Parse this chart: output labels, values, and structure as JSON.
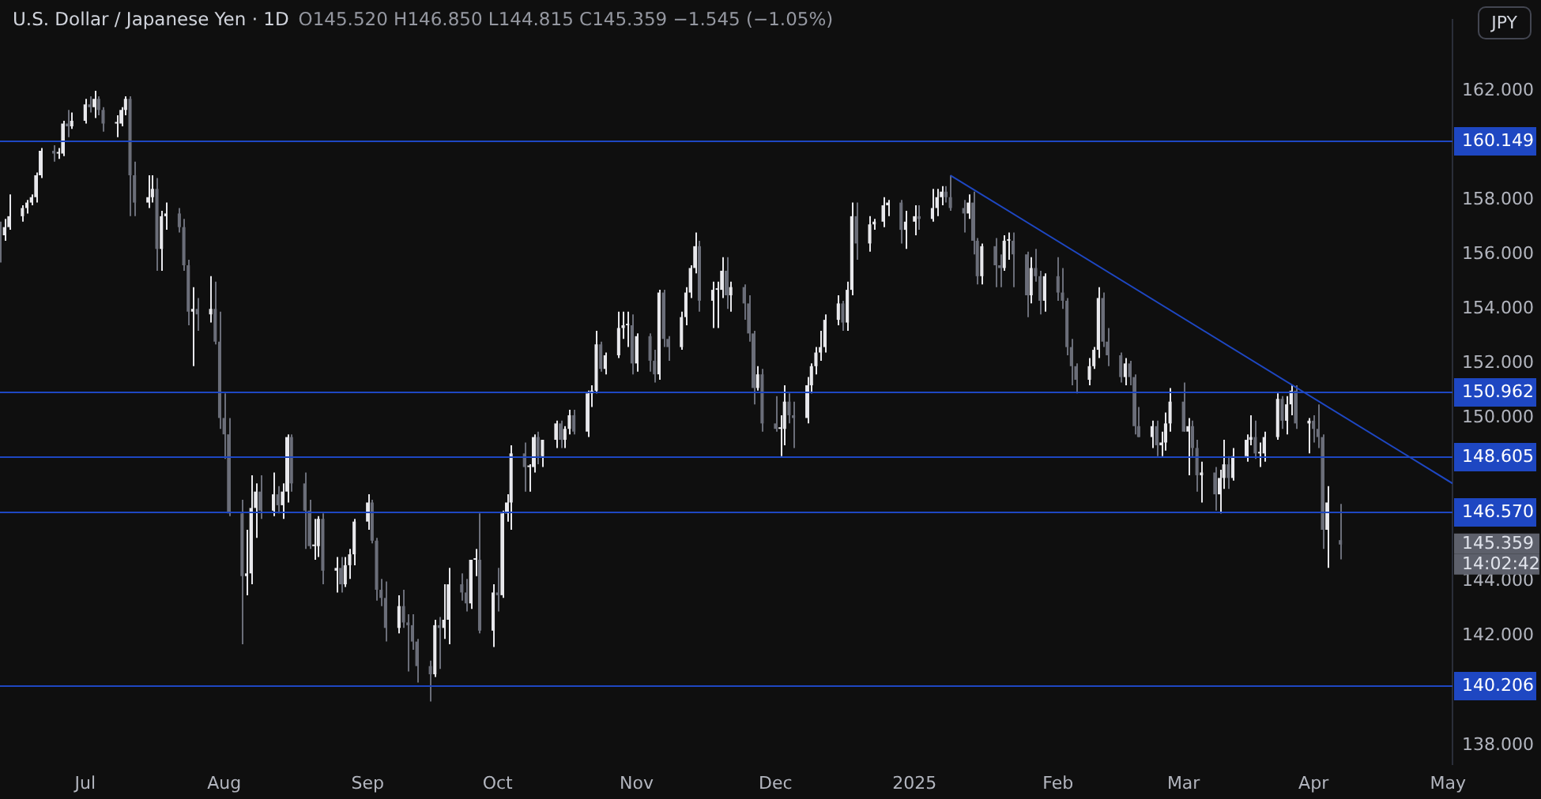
{
  "chart_data": {
    "type": "candlestick",
    "title": "U.S. Dollar / Japanese Yen · 1D",
    "subtitle": "O145.520 H146.850 L144.815 C145.359 −1.545 (−1.05%)",
    "ylabel": "JPY",
    "x": [
      "2024-06-12",
      "2024-06-13",
      "2024-06-14",
      "2024-06-17",
      "2024-06-18",
      "2024-06-19",
      "2024-06-20",
      "2024-06-21",
      "2024-06-24",
      "2024-06-25",
      "2024-06-26",
      "2024-06-27",
      "2024-06-28",
      "2024-07-01",
      "2024-07-02",
      "2024-07-03",
      "2024-07-04",
      "2024-07-05",
      "2024-07-08",
      "2024-07-09",
      "2024-07-10",
      "2024-07-11",
      "2024-07-12",
      "2024-07-15",
      "2024-07-16",
      "2024-07-17",
      "2024-07-18",
      "2024-07-19",
      "2024-07-22",
      "2024-07-23",
      "2024-07-24",
      "2024-07-25",
      "2024-07-26",
      "2024-07-29",
      "2024-07-30",
      "2024-07-31",
      "2024-08-01",
      "2024-08-02",
      "2024-08-05",
      "2024-08-06",
      "2024-08-07",
      "2024-08-08",
      "2024-08-09",
      "2024-08-12",
      "2024-08-13",
      "2024-08-14",
      "2024-08-15",
      "2024-08-16",
      "2024-08-19",
      "2024-08-20",
      "2024-08-21",
      "2024-08-22",
      "2024-08-23",
      "2024-08-26",
      "2024-08-27",
      "2024-08-28",
      "2024-08-29",
      "2024-08-30",
      "2024-09-02",
      "2024-09-03",
      "2024-09-04",
      "2024-09-05",
      "2024-09-06",
      "2024-09-09",
      "2024-09-10",
      "2024-09-11",
      "2024-09-12",
      "2024-09-13",
      "2024-09-16",
      "2024-09-17",
      "2024-09-18",
      "2024-09-19",
      "2024-09-20",
      "2024-09-23",
      "2024-09-24",
      "2024-09-25",
      "2024-09-26",
      "2024-09-27",
      "2024-09-30",
      "2024-10-01",
      "2024-10-02",
      "2024-10-03",
      "2024-10-04",
      "2024-10-07",
      "2024-10-08",
      "2024-10-09",
      "2024-10-10",
      "2024-10-11",
      "2024-10-14",
      "2024-10-15",
      "2024-10-16",
      "2024-10-17",
      "2024-10-18",
      "2024-10-21",
      "2024-10-22",
      "2024-10-23",
      "2024-10-24",
      "2024-10-25",
      "2024-10-28",
      "2024-10-29",
      "2024-10-30",
      "2024-10-31",
      "2024-11-01",
      "2024-11-04",
      "2024-11-05",
      "2024-11-06",
      "2024-11-07",
      "2024-11-08",
      "2024-11-11",
      "2024-11-12",
      "2024-11-13",
      "2024-11-14",
      "2024-11-15",
      "2024-11-18",
      "2024-11-19",
      "2024-11-20",
      "2024-11-21",
      "2024-11-22",
      "2024-11-25",
      "2024-11-26",
      "2024-11-27",
      "2024-11-28",
      "2024-11-29",
      "2024-12-02",
      "2024-12-03",
      "2024-12-04",
      "2024-12-05",
      "2024-12-06",
      "2024-12-09",
      "2024-12-10",
      "2024-12-11",
      "2024-12-12",
      "2024-12-13",
      "2024-12-16",
      "2024-12-17",
      "2024-12-18",
      "2024-12-19",
      "2024-12-20",
      "2024-12-23",
      "2024-12-24",
      "2024-12-26",
      "2024-12-27",
      "2024-12-30",
      "2024-12-31",
      "2025-01-02",
      "2025-01-03",
      "2025-01-06",
      "2025-01-07",
      "2025-01-08",
      "2025-01-09",
      "2025-01-10",
      "2025-01-13",
      "2025-01-14",
      "2025-01-15",
      "2025-01-16",
      "2025-01-17",
      "2025-01-20",
      "2025-01-21",
      "2025-01-22",
      "2025-01-23",
      "2025-01-24",
      "2025-01-27",
      "2025-01-28",
      "2025-01-29",
      "2025-01-30",
      "2025-01-31",
      "2025-02-03",
      "2025-02-04",
      "2025-02-05",
      "2025-02-06",
      "2025-02-07",
      "2025-02-10",
      "2025-02-11",
      "2025-02-12",
      "2025-02-13",
      "2025-02-14",
      "2025-02-17",
      "2025-02-18",
      "2025-02-19",
      "2025-02-20",
      "2025-02-21",
      "2025-02-24",
      "2025-02-25",
      "2025-02-26",
      "2025-02-27",
      "2025-02-28",
      "2025-03-03",
      "2025-03-04",
      "2025-03-05",
      "2025-03-06",
      "2025-03-07",
      "2025-03-10",
      "2025-03-11",
      "2025-03-12",
      "2025-03-13",
      "2025-03-14",
      "2025-03-17",
      "2025-03-18",
      "2025-03-19",
      "2025-03-20",
      "2025-03-21",
      "2025-03-24",
      "2025-03-25",
      "2025-03-26",
      "2025-03-27",
      "2025-03-28",
      "2025-03-31",
      "2025-04-01",
      "2025-04-02",
      "2025-04-03",
      "2025-04-04",
      "2025-04-07"
    ],
    "ohlc": [
      [
        157.0,
        157.2,
        155.7,
        156.7
      ],
      [
        156.7,
        157.3,
        156.5,
        157.0
      ],
      [
        157.0,
        158.2,
        156.9,
        157.4
      ],
      [
        157.4,
        157.8,
        157.2,
        157.7
      ],
      [
        157.7,
        158.0,
        157.5,
        157.9
      ],
      [
        157.9,
        158.2,
        157.8,
        158.1
      ],
      [
        158.1,
        159.0,
        157.9,
        158.9
      ],
      [
        158.9,
        159.9,
        158.8,
        159.8
      ],
      [
        159.8,
        160.0,
        159.4,
        159.7
      ],
      [
        159.7,
        159.9,
        159.5,
        159.7
      ],
      [
        159.7,
        160.9,
        159.6,
        160.8
      ],
      [
        160.8,
        161.3,
        160.3,
        160.7
      ],
      [
        160.7,
        161.2,
        160.6,
        160.9
      ],
      [
        160.9,
        161.7,
        160.8,
        161.5
      ],
      [
        161.5,
        161.8,
        161.2,
        161.4
      ],
      [
        161.4,
        162.0,
        161.0,
        161.7
      ],
      [
        161.7,
        161.8,
        161.1,
        161.3
      ],
      [
        161.3,
        161.4,
        160.5,
        160.8
      ],
      [
        160.8,
        161.1,
        160.3,
        160.8
      ],
      [
        160.8,
        161.4,
        160.7,
        161.3
      ],
      [
        161.3,
        161.8,
        161.1,
        161.7
      ],
      [
        161.7,
        161.8,
        157.4,
        158.9
      ],
      [
        158.9,
        159.4,
        157.4,
        157.9
      ],
      [
        157.9,
        158.9,
        157.7,
        158.1
      ],
      [
        158.1,
        158.9,
        157.9,
        158.4
      ],
      [
        158.4,
        158.8,
        155.4,
        156.2
      ],
      [
        156.2,
        157.6,
        155.4,
        157.4
      ],
      [
        157.4,
        157.9,
        156.9,
        157.5
      ],
      [
        157.5,
        157.7,
        156.8,
        157.0
      ],
      [
        157.0,
        157.3,
        155.4,
        155.6
      ],
      [
        155.6,
        155.8,
        153.4,
        153.9
      ],
      [
        153.9,
        154.8,
        151.9,
        154.0
      ],
      [
        154.0,
        154.4,
        153.2,
        153.8
      ],
      [
        153.8,
        155.2,
        153.5,
        154.0
      ],
      [
        154.0,
        155.0,
        152.7,
        152.8
      ],
      [
        152.8,
        153.9,
        149.6,
        150.0
      ],
      [
        150.0,
        150.9,
        148.5,
        149.4
      ],
      [
        149.4,
        150.0,
        146.4,
        146.5
      ],
      [
        146.5,
        147.0,
        141.7,
        144.2
      ],
      [
        144.2,
        145.9,
        143.5,
        144.3
      ],
      [
        144.3,
        147.9,
        143.9,
        146.7
      ],
      [
        146.7,
        147.6,
        145.6,
        147.3
      ],
      [
        147.3,
        147.9,
        146.3,
        146.6
      ],
      [
        146.6,
        148.0,
        146.4,
        147.2
      ],
      [
        147.2,
        147.5,
        146.5,
        146.8
      ],
      [
        146.8,
        147.6,
        146.3,
        147.3
      ],
      [
        147.3,
        149.4,
        146.9,
        149.3
      ],
      [
        149.3,
        149.4,
        147.3,
        147.6
      ],
      [
        147.6,
        148.0,
        145.2,
        146.6
      ],
      [
        146.6,
        147.0,
        145.2,
        145.3
      ],
      [
        145.3,
        146.3,
        144.8,
        145.3
      ],
      [
        145.3,
        146.4,
        144.9,
        146.3
      ],
      [
        146.3,
        146.5,
        143.9,
        144.4
      ],
      [
        144.4,
        144.9,
        143.6,
        144.5
      ],
      [
        144.5,
        144.9,
        143.6,
        143.9
      ],
      [
        143.9,
        144.9,
        143.8,
        144.6
      ],
      [
        144.6,
        145.2,
        144.1,
        145.0
      ],
      [
        145.0,
        146.3,
        144.6,
        146.2
      ],
      [
        146.2,
        147.2,
        145.9,
        146.9
      ],
      [
        146.9,
        147.0,
        145.4,
        145.5
      ],
      [
        145.5,
        145.6,
        143.3,
        143.7
      ],
      [
        143.7,
        144.1,
        143.1,
        143.4
      ],
      [
        143.4,
        144.0,
        141.8,
        142.3
      ],
      [
        142.3,
        143.5,
        142.1,
        143.1
      ],
      [
        143.1,
        143.7,
        142.3,
        142.5
      ],
      [
        142.5,
        142.8,
        140.7,
        142.4
      ],
      [
        142.4,
        142.8,
        141.5,
        141.8
      ],
      [
        141.8,
        141.9,
        140.3,
        140.9
      ],
      [
        140.9,
        141.1,
        139.6,
        140.6
      ],
      [
        140.6,
        142.6,
        140.5,
        142.4
      ],
      [
        142.4,
        142.7,
        140.8,
        142.3
      ],
      [
        142.3,
        143.9,
        141.9,
        142.6
      ],
      [
        142.6,
        144.5,
        141.7,
        143.9
      ],
      [
        143.9,
        144.3,
        143.3,
        143.6
      ],
      [
        143.6,
        144.1,
        142.9,
        143.2
      ],
      [
        143.2,
        144.8,
        143.0,
        144.8
      ],
      [
        144.8,
        145.2,
        144.2,
        144.8
      ],
      [
        144.8,
        146.5,
        142.1,
        142.2
      ],
      [
        142.2,
        143.9,
        141.6,
        143.6
      ],
      [
        143.6,
        144.5,
        142.9,
        143.5
      ],
      [
        143.5,
        146.6,
        143.4,
        146.5
      ],
      [
        146.5,
        147.2,
        146.2,
        146.9
      ],
      [
        146.9,
        149.0,
        145.9,
        148.7
      ],
      [
        148.7,
        149.1,
        147.3,
        148.2
      ],
      [
        148.2,
        148.3,
        147.3,
        148.2
      ],
      [
        148.2,
        149.4,
        148.0,
        149.3
      ],
      [
        149.3,
        149.5,
        148.3,
        148.6
      ],
      [
        148.6,
        149.2,
        148.2,
        149.2
      ],
      [
        149.2,
        149.9,
        148.9,
        149.8
      ],
      [
        149.8,
        149.9,
        148.9,
        149.2
      ],
      [
        149.2,
        149.7,
        148.9,
        149.6
      ],
      [
        149.6,
        150.3,
        149.4,
        150.1
      ],
      [
        150.1,
        150.3,
        149.4,
        149.5
      ],
      [
        149.5,
        151.0,
        149.3,
        150.9
      ],
      [
        150.9,
        151.2,
        150.4,
        151.0
      ],
      [
        151.0,
        153.2,
        150.9,
        152.7
      ],
      [
        152.7,
        152.8,
        151.7,
        151.8
      ],
      [
        151.8,
        152.4,
        151.6,
        152.3
      ],
      [
        152.3,
        153.9,
        152.2,
        153.3
      ],
      [
        153.3,
        153.9,
        152.9,
        153.4
      ],
      [
        153.4,
        153.9,
        152.6,
        153.4
      ],
      [
        153.4,
        153.8,
        151.6,
        152.0
      ],
      [
        152.0,
        153.1,
        151.7,
        153.0
      ],
      [
        153.0,
        153.1,
        151.7,
        152.1
      ],
      [
        152.1,
        152.5,
        151.3,
        151.6
      ],
      [
        151.6,
        154.7,
        151.4,
        154.6
      ],
      [
        154.6,
        154.7,
        152.6,
        152.9
      ],
      [
        152.9,
        153.0,
        152.1,
        152.6
      ],
      [
        152.6,
        153.9,
        152.5,
        153.7
      ],
      [
        153.7,
        154.8,
        153.4,
        154.6
      ],
      [
        154.6,
        155.6,
        154.4,
        155.5
      ],
      [
        155.5,
        156.8,
        155.3,
        156.3
      ],
      [
        156.3,
        156.5,
        153.9,
        154.3
      ],
      [
        154.3,
        155.0,
        153.3,
        154.7
      ],
      [
        154.7,
        155.0,
        153.3,
        154.7
      ],
      [
        154.7,
        155.9,
        154.4,
        155.4
      ],
      [
        155.4,
        155.9,
        154.0,
        154.5
      ],
      [
        154.5,
        155.0,
        153.9,
        154.8
      ],
      [
        154.8,
        154.9,
        153.6,
        154.2
      ],
      [
        154.2,
        154.5,
        152.8,
        153.1
      ],
      [
        153.1,
        153.2,
        150.5,
        151.1
      ],
      [
        151.1,
        151.9,
        151.0,
        151.6
      ],
      [
        151.6,
        151.8,
        149.5,
        149.8
      ],
      [
        149.8,
        150.8,
        149.5,
        149.6
      ],
      [
        149.6,
        150.1,
        148.6,
        149.6
      ],
      [
        149.6,
        151.2,
        149.0,
        150.6
      ],
      [
        150.6,
        150.9,
        149.8,
        150.1
      ],
      [
        150.1,
        150.6,
        148.9,
        150.0
      ],
      [
        150.0,
        151.5,
        149.8,
        151.2
      ],
      [
        151.2,
        152.0,
        150.9,
        151.9
      ],
      [
        151.9,
        152.6,
        151.6,
        152.4
      ],
      [
        152.4,
        153.2,
        152.1,
        152.6
      ],
      [
        152.6,
        153.8,
        152.4,
        153.6
      ],
      [
        153.6,
        154.5,
        153.4,
        154.2
      ],
      [
        154.2,
        154.3,
        153.2,
        153.5
      ],
      [
        153.5,
        155.0,
        153.2,
        154.7
      ],
      [
        154.7,
        157.9,
        154.5,
        157.4
      ],
      [
        157.4,
        157.9,
        155.8,
        156.4
      ],
      [
        156.4,
        157.4,
        156.1,
        157.1
      ],
      [
        157.1,
        157.3,
        156.9,
        157.2
      ],
      [
        157.2,
        158.1,
        157.0,
        157.8
      ],
      [
        157.8,
        158.0,
        157.4,
        157.9
      ],
      [
        157.9,
        158.0,
        156.4,
        156.9
      ],
      [
        156.9,
        157.6,
        156.2,
        157.2
      ],
      [
        157.2,
        157.8,
        156.7,
        157.4
      ],
      [
        157.4,
        157.8,
        156.9,
        157.3
      ],
      [
        157.3,
        158.4,
        157.2,
        157.7
      ],
      [
        157.7,
        158.4,
        157.4,
        158.1
      ],
      [
        158.1,
        158.5,
        157.8,
        158.3
      ],
      [
        158.3,
        158.5,
        157.9,
        158.1
      ],
      [
        158.1,
        158.9,
        157.6,
        157.7
      ],
      [
        157.7,
        158.0,
        156.8,
        157.5
      ],
      [
        157.5,
        158.2,
        157.3,
        157.9
      ],
      [
        157.9,
        158.3,
        156.0,
        156.5
      ],
      [
        156.5,
        156.6,
        154.9,
        155.2
      ],
      [
        155.2,
        156.4,
        154.9,
        156.3
      ],
      [
        156.3,
        156.6,
        154.8,
        155.6
      ],
      [
        155.6,
        156.0,
        154.8,
        155.5
      ],
      [
        155.5,
        156.7,
        155.4,
        156.5
      ],
      [
        156.5,
        156.8,
        155.8,
        156.5
      ],
      [
        156.5,
        156.8,
        154.8,
        156.0
      ],
      [
        156.0,
        156.1,
        153.7,
        154.5
      ],
      [
        154.5,
        155.9,
        154.2,
        155.5
      ],
      [
        155.5,
        156.2,
        155.0,
        155.2
      ],
      [
        155.2,
        155.4,
        153.8,
        154.3
      ],
      [
        154.3,
        155.3,
        153.9,
        155.2
      ],
      [
        155.2,
        155.9,
        154.3,
        154.6
      ],
      [
        154.6,
        155.5,
        154.0,
        154.3
      ],
      [
        154.3,
        154.4,
        152.3,
        152.6
      ],
      [
        152.6,
        152.9,
        151.2,
        151.9
      ],
      [
        151.9,
        152.0,
        150.9,
        151.4
      ],
      [
        151.4,
        152.2,
        151.2,
        151.9
      ],
      [
        151.9,
        152.6,
        151.8,
        152.5
      ],
      [
        152.5,
        154.8,
        152.2,
        154.4
      ],
      [
        154.4,
        154.6,
        152.6,
        152.8
      ],
      [
        152.8,
        153.3,
        151.9,
        152.3
      ],
      [
        152.3,
        152.4,
        151.3,
        151.5
      ],
      [
        151.5,
        152.2,
        151.2,
        152.0
      ],
      [
        152.0,
        152.1,
        151.2,
        151.5
      ],
      [
        151.5,
        151.6,
        149.4,
        149.7
      ],
      [
        149.7,
        150.4,
        149.3,
        149.3
      ],
      [
        149.3,
        149.9,
        148.9,
        149.7
      ],
      [
        149.7,
        149.9,
        148.6,
        149.0
      ],
      [
        149.0,
        149.5,
        148.6,
        149.1
      ],
      [
        149.1,
        150.2,
        148.8,
        149.8
      ],
      [
        149.8,
        151.1,
        149.5,
        150.6
      ],
      [
        150.6,
        151.3,
        149.5,
        149.5
      ],
      [
        149.5,
        150.0,
        147.9,
        149.7
      ],
      [
        149.7,
        149.9,
        148.6,
        148.9
      ],
      [
        148.9,
        149.2,
        147.3,
        147.9
      ],
      [
        147.9,
        148.4,
        146.9,
        148.0
      ],
      [
        148.0,
        148.2,
        146.6,
        147.2
      ],
      [
        147.2,
        148.1,
        146.5,
        147.8
      ],
      [
        147.8,
        149.2,
        147.4,
        148.3
      ],
      [
        148.3,
        148.6,
        147.4,
        147.8
      ],
      [
        147.8,
        148.9,
        147.7,
        148.6
      ],
      [
        148.6,
        149.4,
        148.4,
        149.2
      ],
      [
        149.2,
        150.1,
        149.0,
        149.3
      ],
      [
        149.3,
        149.9,
        148.5,
        148.7
      ],
      [
        148.7,
        149.1,
        148.2,
        148.7
      ],
      [
        148.7,
        149.5,
        148.4,
        149.3
      ],
      [
        149.3,
        150.9,
        149.2,
        150.7
      ],
      [
        150.7,
        150.8,
        149.6,
        149.9
      ],
      [
        149.9,
        150.8,
        149.4,
        150.5
      ],
      [
        150.5,
        151.2,
        150.1,
        151.0
      ],
      [
        151.0,
        151.2,
        149.6,
        149.8
      ],
      [
        149.8,
        150.0,
        148.7,
        149.9
      ],
      [
        149.9,
        150.1,
        149.1,
        149.6
      ],
      [
        149.6,
        150.5,
        148.9,
        149.3
      ],
      [
        149.3,
        149.4,
        145.2,
        145.9
      ],
      [
        145.9,
        147.5,
        144.5,
        146.9
      ],
      [
        145.52,
        146.85,
        144.815,
        145.359
      ]
    ],
    "series": [
      {
        "type": "line",
        "x": [
          "2025-01-10",
          "2025-05-02"
        ],
        "values": [
          158.9,
          147.6
        ],
        "color": "#1e47c2"
      }
    ],
    "xlim": [
      "2024-06-12",
      "2025-05-02"
    ],
    "xticks": [
      {
        "value": "2024-07-01",
        "label": "Jul"
      },
      {
        "value": "2024-08-01",
        "label": "Aug"
      },
      {
        "value": "2024-09-02",
        "label": "Sep"
      },
      {
        "value": "2024-10-01",
        "label": "Oct"
      },
      {
        "value": "2024-11-01",
        "label": "Nov"
      },
      {
        "value": "2024-12-02",
        "label": "Dec"
      },
      {
        "value": "2025-01-02",
        "label": "2025"
      },
      {
        "value": "2025-02-03",
        "label": "Feb"
      },
      {
        "value": "2025-03-03",
        "label": "Mar"
      },
      {
        "value": "2025-04-01",
        "label": "Apr"
      },
      {
        "value": "2025-05-01",
        "label": "May"
      }
    ],
    "ylim": [
      137.3,
      164.6
    ],
    "yticks": [
      {
        "value": 138,
        "label": "138.000"
      },
      {
        "value": 142,
        "label": "142.000"
      },
      {
        "value": 144,
        "label": "144.000"
      },
      {
        "value": 150,
        "label": "150.000"
      },
      {
        "value": 152,
        "label": "152.000"
      },
      {
        "value": 154,
        "label": "154.000"
      },
      {
        "value": 156,
        "label": "156.000"
      },
      {
        "value": 158,
        "label": "158.000"
      },
      {
        "value": 162,
        "label": "162.000"
      }
    ],
    "ref_lines": [
      {
        "axis": "y",
        "value": 160.149,
        "label": "160.149",
        "color": "#1e47c2"
      },
      {
        "axis": "y",
        "value": 150.962,
        "label": "150.962",
        "color": "#1e47c2"
      },
      {
        "axis": "y",
        "value": 148.605,
        "label": "148.605",
        "color": "#1e47c2"
      },
      {
        "axis": "y",
        "value": 146.57,
        "label": "146.570",
        "color": "#1e47c2"
      },
      {
        "axis": "y",
        "value": 140.206,
        "label": "140.206",
        "color": "#1e47c2"
      }
    ],
    "annotations": [
      "145.359",
      "14:02:42"
    ]
  }
}
